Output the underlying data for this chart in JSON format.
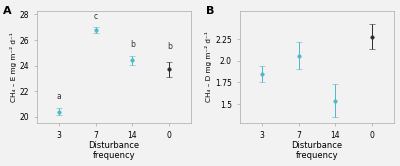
{
  "panel_A": {
    "label": "A",
    "x_labels": [
      "3",
      "7",
      "14",
      "0"
    ],
    "means": [
      20.4,
      26.8,
      24.4,
      23.7
    ],
    "errors_upper": [
      0.3,
      0.25,
      0.35,
      0.6
    ],
    "errors_lower": [
      0.3,
      0.25,
      0.35,
      0.6
    ],
    "colors": [
      "#4db8c8",
      "#4db8c8",
      "#4db8c8",
      "#2b2b2b"
    ],
    "sig_labels": [
      "a",
      "c",
      "b",
      "b"
    ],
    "sig_label_offsets": [
      0.55,
      0.45,
      0.55,
      0.85
    ],
    "ylabel": "CH₄ – E mg m⁻² d⁻¹",
    "xlabel": "Disturbance\nfrequency",
    "ylim": [
      19.5,
      28.3
    ],
    "yticks": [
      20,
      22,
      24,
      26,
      28
    ]
  },
  "panel_B": {
    "label": "B",
    "x_labels": [
      "3",
      "7",
      "14",
      "0"
    ],
    "means": [
      1.85,
      2.06,
      1.54,
      2.28
    ],
    "errors_upper": [
      0.09,
      0.16,
      0.19,
      0.14
    ],
    "errors_lower": [
      0.09,
      0.16,
      0.19,
      0.14
    ],
    "colors": [
      "#4db8c8",
      "#4db8c8",
      "#4db8c8",
      "#2b2b2b"
    ],
    "ylabel": "CH₄ – D mg m⁻² d⁻¹",
    "xlabel": "Disturbance\nfrequency",
    "ylim": [
      1.28,
      2.58
    ],
    "yticks": [
      1.5,
      1.75,
      2.0,
      2.25
    ]
  },
  "fig_bg_color": "#f2f2f2",
  "plot_bg_color": "#f2f2f2",
  "spine_color": "#aaaaaa"
}
